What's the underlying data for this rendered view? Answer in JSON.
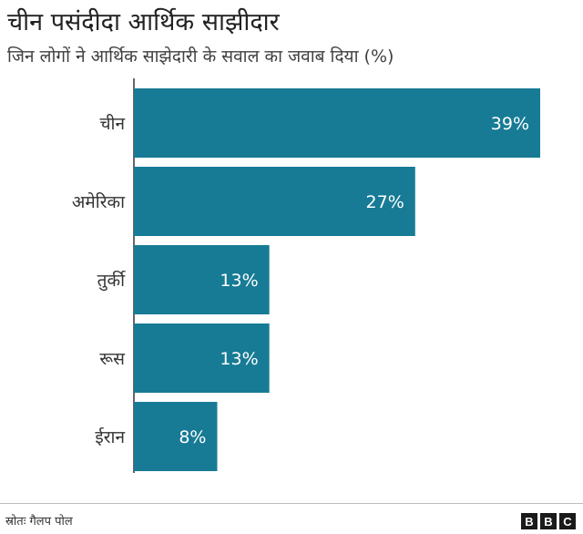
{
  "chart_data": {
    "type": "bar",
    "orientation": "horizontal",
    "title": "चीन पसंदीदा आर्थिक साझीदार",
    "subtitle": "जिन लोगों ने आर्थिक साझेदारी के सवाल का जवाब दिया (%)",
    "categories": [
      "चीन",
      "अमेरिका",
      "तुर्की",
      "रूस",
      "ईरान"
    ],
    "values": [
      39,
      27,
      13,
      13,
      8
    ],
    "value_labels": [
      "39%",
      "27%",
      "13%",
      "13%",
      "8%"
    ],
    "xlim": [
      0,
      39
    ],
    "grid": false,
    "bar_color": "#177b95"
  },
  "source": "स्रोतः गैलप पोल",
  "logo": {
    "letters": [
      "B",
      "B",
      "C"
    ]
  }
}
